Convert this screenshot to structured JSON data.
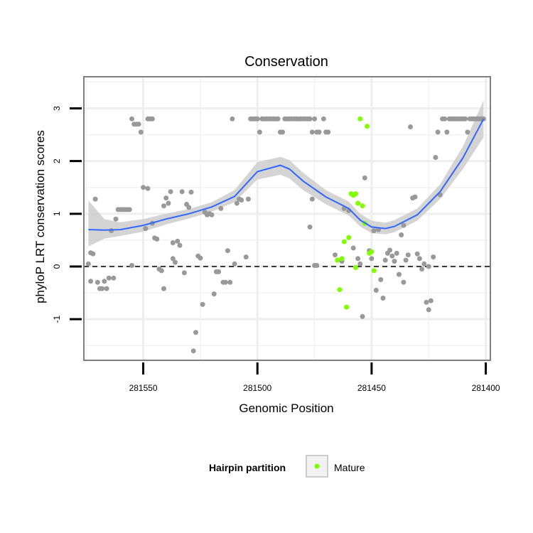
{
  "chart_data": {
    "type": "scatter",
    "title": "Conservation",
    "xlabel": "Genomic Position",
    "ylabel": "phyloP LRT conservation scores",
    "x_reversed": true,
    "xlim": [
      281398,
      281576
    ],
    "ylim": [
      -1.78,
      3.6
    ],
    "x_ticks": [
      281550,
      281500,
      281450,
      281400
    ],
    "x_tick_labels": [
      "281550",
      "281500",
      "281450",
      "281400"
    ],
    "y_ticks": [
      -1,
      0,
      1,
      2,
      3
    ],
    "y_tick_labels": [
      "-1",
      "0",
      "1",
      "2",
      "3"
    ],
    "reference_line": {
      "y": 0,
      "style": "dashed"
    },
    "grid": true,
    "legend": {
      "title": "Hairpin partition",
      "entries": [
        {
          "label": "Mature",
          "color": "#7fff00"
        }
      ],
      "placement": "bottom"
    },
    "colors": {
      "points_other": "#999999",
      "points_mature": "#7fff00",
      "smooth_line": "#3366ff",
      "smooth_band": "#cccccc",
      "panel_background": "#ebebeb",
      "grid": "#ffffff"
    },
    "series": [
      {
        "group": "other",
        "color": "#999999",
        "points": [
          [
            281574,
            0.05
          ],
          [
            281573,
            -0.28
          ],
          [
            281573,
            0.26
          ],
          [
            281572,
            0.24
          ],
          [
            281571,
            1.28
          ],
          [
            281570,
            -0.3
          ],
          [
            281569,
            -0.42
          ],
          [
            281568,
            -0.42
          ],
          [
            281567,
            -0.28
          ],
          [
            281566,
            -0.42
          ],
          [
            281565,
            -0.22
          ],
          [
            281564,
            0.68
          ],
          [
            281563,
            -0.22
          ],
          [
            281562,
            0.9
          ],
          [
            281561,
            1.08
          ],
          [
            281560,
            1.08
          ],
          [
            281559,
            1.08
          ],
          [
            281558,
            1.08
          ],
          [
            281557,
            1.08
          ],
          [
            281556,
            1.08
          ],
          [
            281555,
            0.02
          ],
          [
            281555,
            2.8
          ],
          [
            281554,
            2.7
          ],
          [
            281553,
            2.7
          ],
          [
            281552,
            2.7
          ],
          [
            281551,
            2.55
          ],
          [
            281550,
            1.5
          ],
          [
            281549,
            0.72
          ],
          [
            281548,
            1.48
          ],
          [
            281548,
            2.8
          ],
          [
            281547,
            2.8
          ],
          [
            281546,
            2.8
          ],
          [
            281546,
            0.82
          ],
          [
            281545,
            0.54
          ],
          [
            281544,
            0.52
          ],
          [
            281543,
            -0.05
          ],
          [
            281542,
            -0.08
          ],
          [
            281541,
            -0.42
          ],
          [
            281541,
            1.15
          ],
          [
            281540,
            1.3
          ],
          [
            281539,
            1.2
          ],
          [
            281538,
            1.42
          ],
          [
            281537,
            0.45
          ],
          [
            281537,
            0.15
          ],
          [
            281536,
            0.08
          ],
          [
            281535,
            0.48
          ],
          [
            281534,
            0.4
          ],
          [
            281533,
            1.42
          ],
          [
            281532,
            -0.12
          ],
          [
            281531,
            1.18
          ],
          [
            281530,
            1.12
          ],
          [
            281529,
            1.41
          ],
          [
            281528,
            -1.6
          ],
          [
            281527,
            -1.25
          ],
          [
            281526,
            0.2
          ],
          [
            281525,
            0.16
          ],
          [
            281524,
            -0.72
          ],
          [
            281523,
            1.03
          ],
          [
            281522,
            0.98
          ],
          [
            281521,
            1.0
          ],
          [
            281520,
            0.98
          ],
          [
            281519,
            -0.52
          ],
          [
            281518,
            -0.1
          ],
          [
            281517,
            -0.1
          ],
          [
            281516,
            1.1
          ],
          [
            281515,
            -0.3
          ],
          [
            281514,
            -0.3
          ],
          [
            281513,
            0.3
          ],
          [
            281512,
            -0.3
          ],
          [
            281510,
            0.05
          ],
          [
            281509,
            1.2
          ],
          [
            281508,
            1.28
          ],
          [
            281507,
            1.26
          ],
          [
            281505,
            0.18
          ],
          [
            281504,
            1.28
          ],
          [
            281511,
            2.8
          ],
          [
            281503,
            2.8
          ],
          [
            281502,
            2.8
          ],
          [
            281501,
            2.8
          ],
          [
            281500,
            2.8
          ],
          [
            281499,
            2.55
          ],
          [
            281498,
            2.8
          ],
          [
            281497,
            2.8
          ],
          [
            281496,
            2.8
          ],
          [
            281495,
            2.8
          ],
          [
            281494,
            2.8
          ],
          [
            281493,
            2.8
          ],
          [
            281492,
            2.8
          ],
          [
            281491,
            2.8
          ],
          [
            281490,
            2.55
          ],
          [
            281489,
            2.55
          ],
          [
            281488,
            2.8
          ],
          [
            281487,
            2.8
          ],
          [
            281486,
            2.8
          ],
          [
            281485,
            2.8
          ],
          [
            281484,
            2.8
          ],
          [
            281483,
            2.8
          ],
          [
            281482,
            2.8
          ],
          [
            281481,
            2.8
          ],
          [
            281480,
            2.8
          ],
          [
            281479,
            2.8
          ],
          [
            281478,
            2.8
          ],
          [
            281477,
            2.8
          ],
          [
            281476,
            2.55
          ],
          [
            281475,
            2.8
          ],
          [
            281474,
            2.55
          ],
          [
            281473,
            2.55
          ],
          [
            281471,
            2.8
          ],
          [
            281470,
            2.55
          ],
          [
            281469,
            2.55
          ],
          [
            281477,
            0.75
          ],
          [
            281476,
            1.28
          ],
          [
            281475,
            0.02
          ],
          [
            281474,
            0.02
          ],
          [
            281466,
            0.22
          ],
          [
            281463,
            0.1
          ],
          [
            281462,
            1.1
          ],
          [
            281460,
            1.06
          ],
          [
            281458,
            0.35
          ],
          [
            281456,
            0.15
          ],
          [
            281455,
            0.05
          ],
          [
            281454,
            -0.95
          ],
          [
            281453,
            1.68
          ],
          [
            281451,
            0.3
          ],
          [
            281450,
            0.15
          ],
          [
            281449,
            0.68
          ],
          [
            281448,
            -0.45
          ],
          [
            281447,
            0.7
          ],
          [
            281446,
            -0.25
          ],
          [
            281445,
            -0.6
          ],
          [
            281444,
            0.12
          ],
          [
            281443,
            0.25
          ],
          [
            281442,
            0.31
          ],
          [
            281441,
            0.2
          ],
          [
            281440,
            0.1
          ],
          [
            281439,
            0.25
          ],
          [
            281438,
            -0.15
          ],
          [
            281437,
            0.6
          ],
          [
            281436,
            0.78
          ],
          [
            281436,
            -0.3
          ],
          [
            281435,
            0.12
          ],
          [
            281434,
            0.22
          ],
          [
            281433,
            2.65
          ],
          [
            281432,
            1.3
          ],
          [
            281431,
            1.32
          ],
          [
            281430,
            0.24
          ],
          [
            281429,
            0.15
          ],
          [
            281428,
            -0.05
          ],
          [
            281427,
            0.05
          ],
          [
            281426,
            -0.68
          ],
          [
            281425,
            -0.82
          ],
          [
            281425,
            0.0
          ],
          [
            281424,
            -0.65
          ],
          [
            281423,
            0.18
          ],
          [
            281422,
            2.07
          ],
          [
            281421,
            2.55
          ],
          [
            281420,
            1.36
          ],
          [
            281419,
            2.8
          ],
          [
            281418,
            2.8
          ],
          [
            281417,
            2.55
          ],
          [
            281416,
            2.8
          ],
          [
            281415,
            2.8
          ],
          [
            281414,
            2.8
          ],
          [
            281413,
            2.8
          ],
          [
            281412,
            2.8
          ],
          [
            281411,
            2.8
          ],
          [
            281410,
            2.8
          ],
          [
            281409,
            2.8
          ],
          [
            281408,
            2.55
          ],
          [
            281407,
            2.8
          ],
          [
            281406,
            2.8
          ],
          [
            281405,
            2.8
          ],
          [
            281404,
            2.8
          ],
          [
            281403,
            2.8
          ],
          [
            281402,
            2.8
          ],
          [
            281401,
            2.8
          ]
        ]
      },
      {
        "group": "Mature",
        "color": "#7fff00",
        "points": [
          [
            281465,
            0.12
          ],
          [
            281464,
            -0.44
          ],
          [
            281463,
            0.15
          ],
          [
            281462,
            0.47
          ],
          [
            281461,
            -0.77
          ],
          [
            281460,
            0.55
          ],
          [
            281459,
            1.38
          ],
          [
            281458,
            1.35
          ],
          [
            281457,
            1.38
          ],
          [
            281456,
            1.2
          ],
          [
            281455,
            2.8
          ],
          [
            281454,
            1.15
          ],
          [
            281453,
            0.82
          ],
          [
            281452,
            2.66
          ],
          [
            281451,
            0.25
          ],
          [
            281450,
            0.28
          ],
          [
            281449,
            -0.08
          ],
          [
            281457,
            -0.02
          ]
        ]
      }
    ],
    "smooth": {
      "x": [
        281574,
        281567,
        281560,
        281550,
        281540,
        281530,
        281520,
        281510,
        281500,
        281490,
        281486,
        281480,
        281470,
        281460,
        281455,
        281450,
        281444,
        281440,
        281430,
        281420,
        281410,
        281401
      ],
      "y": [
        0.7,
        0.69,
        0.7,
        0.78,
        0.9,
        1.0,
        1.13,
        1.33,
        1.8,
        1.92,
        1.85,
        1.62,
        1.32,
        1.1,
        0.88,
        0.75,
        0.72,
        0.76,
        0.98,
        1.42,
        2.06,
        2.8
      ],
      "lower": [
        0.38,
        0.53,
        0.58,
        0.66,
        0.8,
        0.91,
        1.04,
        1.22,
        1.65,
        1.74,
        1.67,
        1.45,
        1.18,
        0.97,
        0.76,
        0.63,
        0.61,
        0.65,
        0.87,
        1.28,
        1.85,
        2.45
      ],
      "upper": [
        1.25,
        0.9,
        0.84,
        0.9,
        1.0,
        1.09,
        1.22,
        1.45,
        1.98,
        2.08,
        2.02,
        1.78,
        1.45,
        1.23,
        1.0,
        0.87,
        0.83,
        0.88,
        1.1,
        1.56,
        2.28,
        3.15
      ]
    }
  }
}
